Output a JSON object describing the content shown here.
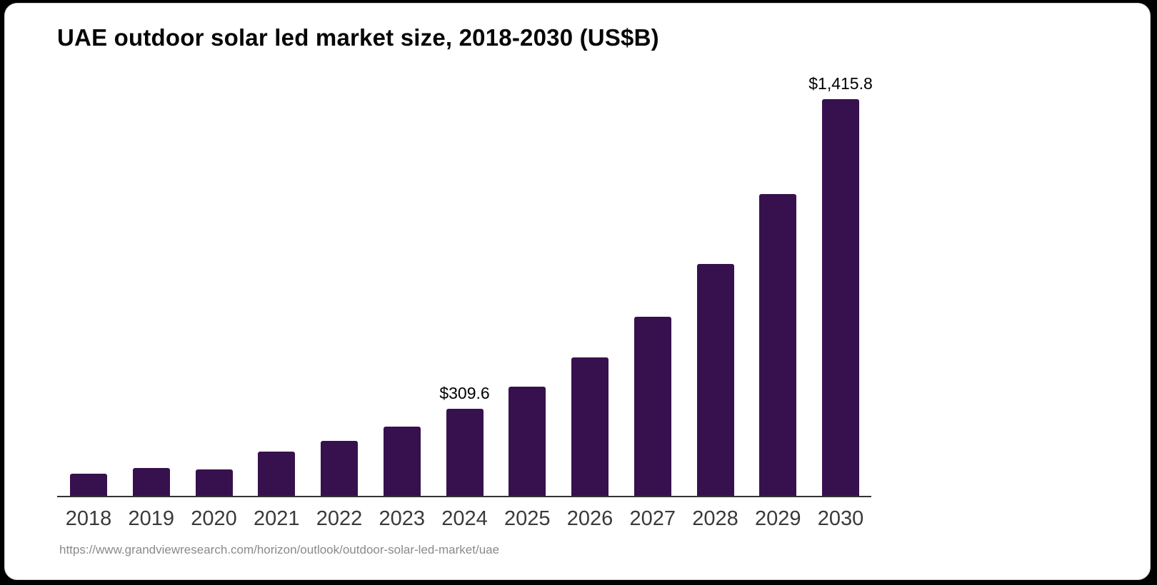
{
  "card": {
    "title": "UAE outdoor solar led market size, 2018-2030 (US$B)",
    "source_url": "https://www.grandviewresearch.com/horizon/outlook/outdoor-solar-led-market/uae"
  },
  "colors": {
    "background": "#000000",
    "card_background": "#ffffff",
    "bar": "#37114D",
    "axis": "#333333",
    "year_label": "#3a3a3a",
    "value_label": "#000000",
    "source_text": "#8a8a8a"
  },
  "chart_data": {
    "type": "bar",
    "title": "UAE outdoor solar led market size, 2018-2030 (US$B)",
    "categories": [
      "2018",
      "2019",
      "2020",
      "2021",
      "2022",
      "2023",
      "2024",
      "2025",
      "2026",
      "2027",
      "2028",
      "2029",
      "2030"
    ],
    "values": [
      78.5,
      100.7,
      95.6,
      157.6,
      195.8,
      246.8,
      309.6,
      389.6,
      495.2,
      638.8,
      827.5,
      1077.4,
      1415.8
    ],
    "labeled_points": [
      {
        "category": "2024",
        "label": "$309.6",
        "value": 309.6
      },
      {
        "category": "2030",
        "label": "$1,415.8",
        "value": 1415.8
      }
    ],
    "xlabel": "",
    "ylabel": "",
    "ylim": [
      0,
      1460
    ],
    "grid": false,
    "legend": false,
    "y_axis_shown": false,
    "bar_color": "#37114D",
    "source": "https://www.grandviewresearch.com/horizon/outlook/outdoor-solar-led-market/uae"
  }
}
